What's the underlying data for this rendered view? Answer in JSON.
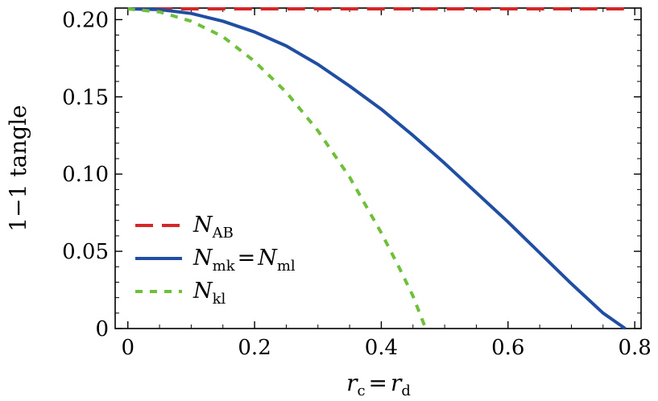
{
  "chart_data": {
    "type": "line",
    "xlabel": {
      "lhs": "r",
      "lhs_sub": "c",
      "eq": "=",
      "rhs": "r",
      "rhs_sub": "d"
    },
    "ylabel": "1−1 tangle",
    "xlim": [
      -0.02,
      0.81
    ],
    "ylim": [
      0,
      0.2075
    ],
    "x_ticks": [
      {
        "v": 0,
        "label": "0"
      },
      {
        "v": 0.2,
        "label": "0.2"
      },
      {
        "v": 0.4,
        "label": "0.4"
      },
      {
        "v": 0.6,
        "label": "0.6"
      },
      {
        "v": 0.8,
        "label": "0.8"
      }
    ],
    "y_ticks": [
      {
        "v": 0,
        "label": "0"
      },
      {
        "v": 0.05,
        "label": "0.05"
      },
      {
        "v": 0.1,
        "label": "0.10"
      },
      {
        "v": 0.15,
        "label": "0.15"
      },
      {
        "v": 0.2,
        "label": "0.20"
      }
    ],
    "grid": false,
    "legend_position": "bottom-left",
    "series": [
      {
        "legend": {
          "base": "N",
          "sub": "AB"
        },
        "color": "#d62728",
        "style": "dashed",
        "x": [
          0.0,
          0.2,
          0.4,
          0.6,
          0.785
        ],
        "y": [
          0.207,
          0.207,
          0.207,
          0.207,
          0.207
        ]
      },
      {
        "legend": {
          "base": "N",
          "sub": "mk",
          "eq": "=",
          "base2": "N",
          "sub2": "ml"
        },
        "color": "#1f4ea3",
        "style": "solid",
        "x": [
          0.0,
          0.05,
          0.1,
          0.15,
          0.2,
          0.25,
          0.3,
          0.35,
          0.4,
          0.45,
          0.5,
          0.55,
          0.6,
          0.65,
          0.7,
          0.75,
          0.785
        ],
        "y": [
          0.207,
          0.2065,
          0.204,
          0.199,
          0.192,
          0.183,
          0.171,
          0.157,
          0.142,
          0.125,
          0.107,
          0.088,
          0.069,
          0.049,
          0.029,
          0.01,
          0.0
        ]
      },
      {
        "legend": {
          "base": "N",
          "sub": "kl"
        },
        "color": "#6fbf3a",
        "style": "dotted",
        "x": [
          0.0,
          0.05,
          0.1,
          0.15,
          0.2,
          0.25,
          0.3,
          0.35,
          0.4,
          0.43,
          0.45,
          0.47
        ],
        "y": [
          0.207,
          0.205,
          0.199,
          0.189,
          0.173,
          0.153,
          0.128,
          0.098,
          0.062,
          0.038,
          0.021,
          0.0
        ]
      }
    ]
  }
}
